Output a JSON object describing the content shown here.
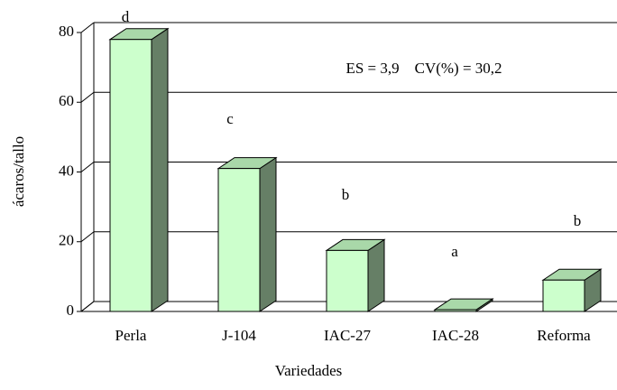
{
  "chart_data": {
    "type": "bar3d",
    "categories": [
      "Perla",
      "J-104",
      "IAC-27",
      "IAC-28",
      "Reforma"
    ],
    "values": [
      78,
      41,
      17.5,
      0.5,
      9
    ],
    "letters": [
      "d",
      "c",
      "b",
      "a",
      "b"
    ],
    "annotation": "ES = 3,9    CV(%) = 30,2",
    "xlabel": "Variedades",
    "ylabel": "ácaros/tallo",
    "color": "#ccffcc",
    "side_color": "#667f66",
    "top_color": "#a9d8a9",
    "ylim": [
      0,
      80
    ],
    "yticks": [
      0,
      20,
      40,
      60,
      80
    ],
    "grid": true
  }
}
